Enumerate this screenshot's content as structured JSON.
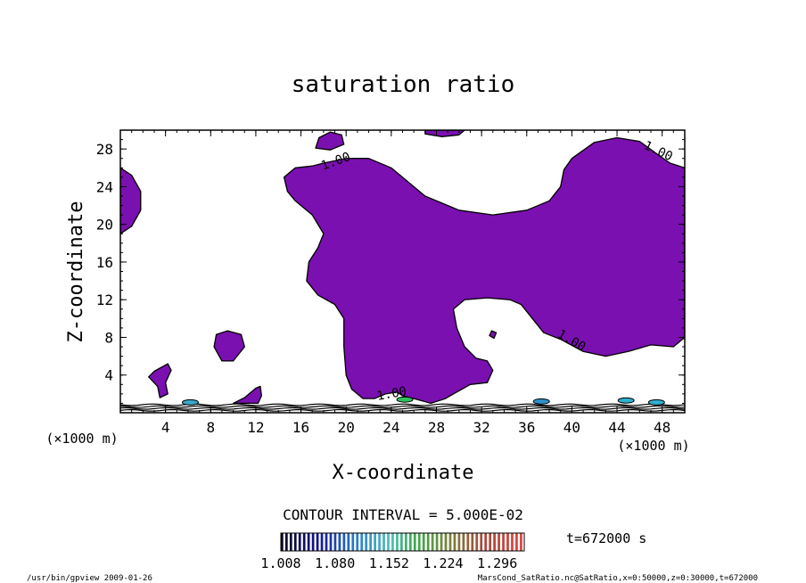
{
  "chart_data": {
    "type": "contour",
    "title": "saturation ratio",
    "xlabel": "X-coordinate",
    "ylabel": "Z-coordinate",
    "x_unit_left": "(×1000 m)",
    "x_unit_right": "(×1000 m)",
    "xlim": [
      0,
      50
    ],
    "ylim": [
      0,
      30
    ],
    "xticks": [
      4,
      8,
      12,
      16,
      20,
      24,
      28,
      32,
      36,
      40,
      44,
      48
    ],
    "yticks": [
      4,
      8,
      12,
      16,
      20,
      24,
      28
    ],
    "contour_interval_label": "CONTOUR INTERVAL = 5.000E-02",
    "time_label": "t=672000 s",
    "colorbar_ticks": [
      "1.008",
      "1.080",
      "1.152",
      "1.224",
      "1.296"
    ],
    "colorbar_range": [
      1.008,
      1.332
    ],
    "contour_labels": [
      {
        "text": "1.00",
        "x": 19.2,
        "z": 26.3
      },
      {
        "text": "1.00",
        "x": 47.5,
        "z": 27.4
      },
      {
        "text": "1.00",
        "x": 39.8,
        "z": 7.3
      },
      {
        "text": "1.00",
        "x": 24.1,
        "z": 1.6
      }
    ],
    "filled_value": 1.0,
    "fill_color": "#7a10b0",
    "regions": [
      {
        "name": "main-region",
        "points": [
          [
            14.5,
            25.0
          ],
          [
            15.5,
            26.0
          ],
          [
            17.0,
            26.2
          ],
          [
            18.0,
            26.5
          ],
          [
            20.0,
            27.0
          ],
          [
            22.0,
            27.0
          ],
          [
            24.0,
            26.0
          ],
          [
            25.5,
            24.5
          ],
          [
            27.0,
            23.0
          ],
          [
            30.0,
            21.5
          ],
          [
            33.0,
            21.0
          ],
          [
            36.0,
            21.5
          ],
          [
            38.0,
            22.5
          ],
          [
            39.0,
            24.0
          ],
          [
            39.3,
            25.8
          ],
          [
            40.0,
            27.0
          ],
          [
            42.0,
            28.7
          ],
          [
            44.0,
            29.2
          ],
          [
            46.0,
            28.8
          ],
          [
            47.5,
            27.5
          ],
          [
            48.7,
            26.5
          ],
          [
            50.0,
            26.0
          ],
          [
            50.0,
            8.0
          ],
          [
            49.0,
            7.0
          ],
          [
            47.0,
            7.2
          ],
          [
            45.0,
            6.5
          ],
          [
            43.0,
            6.0
          ],
          [
            41.0,
            6.5
          ],
          [
            39.0,
            7.8
          ],
          [
            37.5,
            8.5
          ],
          [
            36.5,
            10.0
          ],
          [
            35.5,
            11.5
          ],
          [
            34.5,
            12.0
          ],
          [
            32.5,
            12.2
          ],
          [
            30.5,
            12.0
          ],
          [
            29.5,
            11.0
          ],
          [
            29.8,
            9.0
          ],
          [
            30.5,
            7.0
          ],
          [
            31.5,
            5.8
          ],
          [
            32.5,
            5.5
          ],
          [
            33.0,
            4.5
          ],
          [
            32.5,
            3.2
          ],
          [
            31.0,
            3.0
          ],
          [
            29.5,
            2.0
          ],
          [
            28.8,
            1.5
          ],
          [
            27.5,
            1.0
          ],
          [
            26.0,
            1.5
          ],
          [
            25.0,
            1.8
          ],
          [
            24.5,
            2.2
          ],
          [
            23.5,
            2.0
          ],
          [
            22.5,
            1.5
          ],
          [
            21.5,
            1.5
          ],
          [
            20.5,
            2.5
          ],
          [
            20.0,
            4.0
          ],
          [
            19.8,
            7.0
          ],
          [
            19.8,
            10.0
          ],
          [
            19.0,
            11.5
          ],
          [
            17.5,
            12.5
          ],
          [
            16.5,
            14.0
          ],
          [
            16.7,
            16.0
          ],
          [
            17.5,
            17.5
          ],
          [
            18.0,
            19.0
          ],
          [
            17.0,
            21.0
          ],
          [
            15.5,
            22.5
          ],
          [
            14.8,
            23.5
          ]
        ]
      },
      {
        "name": "left-edge-region",
        "points": [
          [
            0,
            26.0
          ],
          [
            1.0,
            25.2
          ],
          [
            1.8,
            23.5
          ],
          [
            1.8,
            21.5
          ],
          [
            1.0,
            19.8
          ],
          [
            0,
            19.0
          ]
        ]
      },
      {
        "name": "top-cap-region",
        "points": [
          [
            27.0,
            30.0
          ],
          [
            27.0,
            29.6
          ],
          [
            28.5,
            29.3
          ],
          [
            30.0,
            29.5
          ],
          [
            30.5,
            30.0
          ]
        ]
      },
      {
        "name": "small-blob-top",
        "points": [
          [
            17.3,
            28.1
          ],
          [
            17.6,
            29.2
          ],
          [
            18.6,
            29.8
          ],
          [
            19.6,
            29.5
          ],
          [
            19.8,
            28.5
          ],
          [
            18.6,
            27.9
          ]
        ]
      },
      {
        "name": "small-blob-mid-left",
        "points": [
          [
            8.3,
            7.0
          ],
          [
            8.5,
            8.3
          ],
          [
            9.5,
            8.7
          ],
          [
            10.7,
            8.3
          ],
          [
            11.0,
            7.0
          ],
          [
            10.0,
            5.5
          ],
          [
            9.0,
            5.5
          ]
        ]
      },
      {
        "name": "tiny-blob-center",
        "points": [
          [
            32.7,
            8.2
          ],
          [
            32.9,
            8.7
          ],
          [
            33.3,
            8.5
          ],
          [
            33.1,
            7.9
          ]
        ]
      },
      {
        "name": "small-blob-low-left",
        "points": [
          [
            2.5,
            3.8
          ],
          [
            3.0,
            4.4
          ],
          [
            4.2,
            5.2
          ],
          [
            4.5,
            4.5
          ],
          [
            4.0,
            3.2
          ],
          [
            4.2,
            2.0
          ],
          [
            3.5,
            1.6
          ],
          [
            3.3,
            2.8
          ]
        ]
      },
      {
        "name": "small-blob-bottom",
        "points": [
          [
            10.0,
            1.0
          ],
          [
            11.0,
            1.6
          ],
          [
            12.0,
            2.6
          ],
          [
            12.4,
            2.8
          ],
          [
            12.5,
            1.8
          ],
          [
            12.2,
            1.0
          ]
        ]
      }
    ],
    "colored_spots": [
      {
        "x": 6.2,
        "z": 1.1,
        "color": "#3aa8c8"
      },
      {
        "x": 25.2,
        "z": 1.4,
        "color": "#30c060"
      },
      {
        "x": 37.3,
        "z": 1.2,
        "color": "#3090c8"
      },
      {
        "x": 44.8,
        "z": 1.3,
        "color": "#30b0d0"
      },
      {
        "x": 47.5,
        "z": 1.1,
        "color": "#30b0d0"
      }
    ]
  },
  "footer": {
    "left": "/usr/bin/gpview  2009-01-26",
    "right": "MarsCond_SatRatio.nc@SatRatio,x=0:50000,z=0:30000,t=672000"
  }
}
